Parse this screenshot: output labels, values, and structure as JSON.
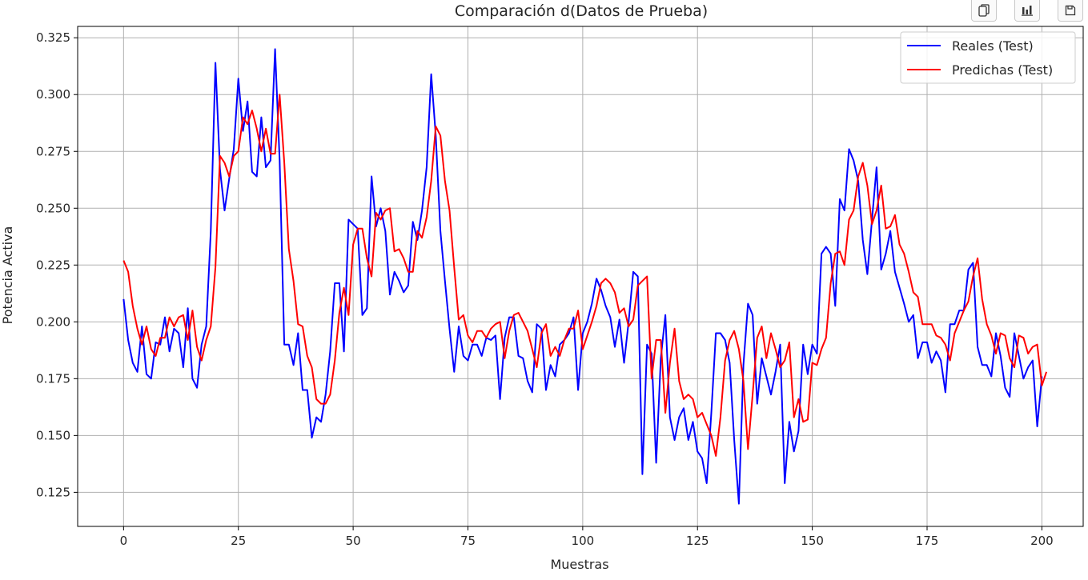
{
  "toolbar": {
    "icons": [
      "copy-icon",
      "bar-chart-icon",
      "save-icon"
    ]
  },
  "chart_data": {
    "type": "line",
    "title": "Comparación d(Datos de Prueba)",
    "xlabel": "Muestras",
    "ylabel": "Potencia Activa",
    "xlim": [
      -10,
      209
    ],
    "ylim": [
      0.11,
      0.33
    ],
    "xticks": [
      0,
      25,
      50,
      75,
      100,
      125,
      150,
      175,
      200
    ],
    "yticks": [
      0.125,
      0.15,
      0.175,
      0.2,
      0.225,
      0.25,
      0.275,
      0.3,
      0.325
    ],
    "ytick_labels": [
      "0.125",
      "0.150",
      "0.175",
      "0.200",
      "0.225",
      "0.250",
      "0.275",
      "0.300",
      "0.325"
    ],
    "grid": true,
    "legend_position": "top-right",
    "series": [
      {
        "name": "Reales (Test)",
        "color": "#0000ff",
        "values": [
          0.21,
          0.192,
          0.182,
          0.178,
          0.198,
          0.177,
          0.175,
          0.191,
          0.19,
          0.202,
          0.187,
          0.197,
          0.195,
          0.18,
          0.206,
          0.175,
          0.171,
          0.19,
          0.198,
          0.24,
          0.314,
          0.267,
          0.249,
          0.263,
          0.276,
          0.307,
          0.284,
          0.297,
          0.266,
          0.264,
          0.29,
          0.268,
          0.271,
          0.32,
          0.271,
          0.19,
          0.19,
          0.181,
          0.195,
          0.17,
          0.17,
          0.149,
          0.158,
          0.156,
          0.168,
          0.187,
          0.217,
          0.217,
          0.187,
          0.245,
          0.243,
          0.241,
          0.203,
          0.206,
          0.264,
          0.242,
          0.25,
          0.24,
          0.212,
          0.222,
          0.218,
          0.213,
          0.216,
          0.244,
          0.236,
          0.249,
          0.268,
          0.309,
          0.282,
          0.24,
          0.218,
          0.197,
          0.178,
          0.198,
          0.185,
          0.183,
          0.19,
          0.19,
          0.185,
          0.193,
          0.192,
          0.194,
          0.166,
          0.193,
          0.202,
          0.202,
          0.185,
          0.184,
          0.174,
          0.169,
          0.199,
          0.197,
          0.17,
          0.181,
          0.176,
          0.19,
          0.192,
          0.195,
          0.202,
          0.17,
          0.195,
          0.2,
          0.208,
          0.219,
          0.214,
          0.207,
          0.202,
          0.189,
          0.201,
          0.182,
          0.2,
          0.222,
          0.22,
          0.133,
          0.19,
          0.186,
          0.138,
          0.184,
          0.203,
          0.158,
          0.148,
          0.158,
          0.162,
          0.148,
          0.156,
          0.143,
          0.14,
          0.129,
          0.16,
          0.195,
          0.195,
          0.192,
          0.182,
          0.148,
          0.12,
          0.181,
          0.208,
          0.203,
          0.164,
          0.184,
          0.176,
          0.168,
          0.178,
          0.19,
          0.129,
          0.156,
          0.143,
          0.152,
          0.19,
          0.177,
          0.19,
          0.186,
          0.23,
          0.233,
          0.23,
          0.207,
          0.254,
          0.249,
          0.276,
          0.271,
          0.262,
          0.236,
          0.221,
          0.245,
          0.268,
          0.223,
          0.23,
          0.24,
          0.222,
          0.215,
          0.208,
          0.2,
          0.203,
          0.184,
          0.191,
          0.191,
          0.182,
          0.187,
          0.183,
          0.169,
          0.199,
          0.199,
          0.205,
          0.205,
          0.223,
          0.226,
          0.189,
          0.181,
          0.181,
          0.176,
          0.195,
          0.185,
          0.171,
          0.167,
          0.195,
          0.185,
          0.175,
          0.18,
          0.183,
          0.154,
          0.176
        ]
      },
      {
        "name": "Predichas (Test)",
        "color": "#ff0000",
        "values": [
          0.227,
          0.222,
          0.207,
          0.197,
          0.19,
          0.198,
          0.188,
          0.185,
          0.193,
          0.193,
          0.202,
          0.198,
          0.202,
          0.203,
          0.192,
          0.205,
          0.189,
          0.183,
          0.192,
          0.198,
          0.224,
          0.273,
          0.27,
          0.264,
          0.273,
          0.275,
          0.29,
          0.287,
          0.293,
          0.285,
          0.275,
          0.285,
          0.274,
          0.274,
          0.3,
          0.27,
          0.232,
          0.218,
          0.199,
          0.198,
          0.185,
          0.18,
          0.166,
          0.164,
          0.164,
          0.168,
          0.183,
          0.204,
          0.215,
          0.203,
          0.234,
          0.241,
          0.241,
          0.228,
          0.22,
          0.248,
          0.245,
          0.249,
          0.25,
          0.231,
          0.232,
          0.228,
          0.222,
          0.222,
          0.24,
          0.237,
          0.246,
          0.262,
          0.286,
          0.282,
          0.262,
          0.249,
          0.224,
          0.201,
          0.203,
          0.194,
          0.191,
          0.196,
          0.196,
          0.193,
          0.197,
          0.199,
          0.2,
          0.184,
          0.196,
          0.203,
          0.204,
          0.2,
          0.196,
          0.188,
          0.18,
          0.195,
          0.199,
          0.185,
          0.189,
          0.185,
          0.192,
          0.197,
          0.197,
          0.205,
          0.188,
          0.194,
          0.2,
          0.207,
          0.217,
          0.219,
          0.217,
          0.213,
          0.204,
          0.206,
          0.198,
          0.201,
          0.216,
          0.218,
          0.22,
          0.175,
          0.192,
          0.192,
          0.16,
          0.182,
          0.197,
          0.174,
          0.166,
          0.168,
          0.166,
          0.158,
          0.16,
          0.155,
          0.15,
          0.141,
          0.158,
          0.183,
          0.192,
          0.196,
          0.188,
          0.174,
          0.144,
          0.168,
          0.193,
          0.198,
          0.184,
          0.195,
          0.188,
          0.18,
          0.183,
          0.191,
          0.158,
          0.166,
          0.156,
          0.157,
          0.182,
          0.181,
          0.188,
          0.193,
          0.217,
          0.23,
          0.231,
          0.225,
          0.245,
          0.249,
          0.264,
          0.27,
          0.26,
          0.243,
          0.249,
          0.26,
          0.241,
          0.242,
          0.247,
          0.234,
          0.23,
          0.222,
          0.213,
          0.211,
          0.199,
          0.199,
          0.199,
          0.194,
          0.193,
          0.19,
          0.183,
          0.195,
          0.2,
          0.205,
          0.209,
          0.22,
          0.228,
          0.21,
          0.199,
          0.194,
          0.186,
          0.195,
          0.194,
          0.184,
          0.18,
          0.194,
          0.193,
          0.186,
          0.189,
          0.19,
          0.172,
          0.178
        ]
      }
    ]
  }
}
